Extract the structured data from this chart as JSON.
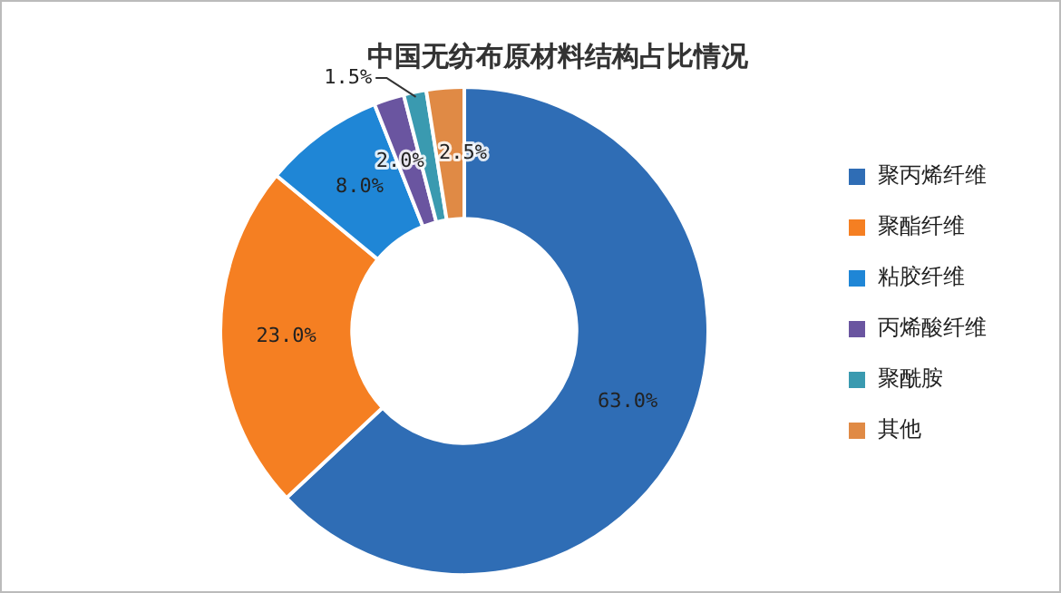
{
  "chart_data": {
    "type": "donut",
    "title": "中国无纺布原材料结构占比情况",
    "categories": [
      "聚丙烯纤维",
      "聚酯纤维",
      "粘胶纤维",
      "丙烯酸纤维",
      "聚酰胺",
      "其他"
    ],
    "values": [
      63,
      23,
      8,
      2,
      1.5,
      2.5
    ],
    "colors": [
      "#2f6db5",
      "#f57f22",
      "#1f86d6",
      "#6a55a0",
      "#3a9ab0",
      "#e08a45"
    ],
    "value_labels": [
      "63.0%",
      "23.0%",
      "8.0%",
      "2.0%",
      "1.5%",
      "2.5%"
    ],
    "legend": "right"
  }
}
